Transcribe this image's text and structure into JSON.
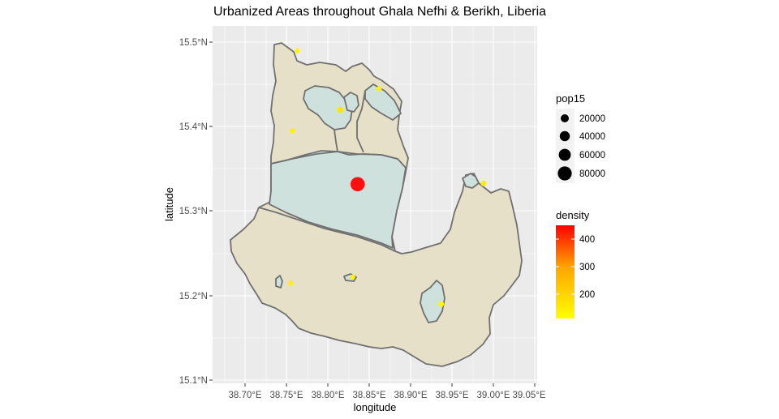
{
  "title": "Urbanized Areas throughout Ghala Nefhi & Berikh, Liberia",
  "axes": {
    "x_label": "longitude",
    "y_label": "latitude",
    "x_ticks": [
      "38.70°E",
      "38.75°E",
      "38.80°E",
      "38.85°E",
      "38.90°E",
      "38.95°E",
      "39.00°E",
      "39.05°E"
    ],
    "y_ticks": [
      "15.1°N",
      "15.2°N",
      "15.3°N",
      "15.4°N",
      "15.5°N"
    ]
  },
  "legend": {
    "size_title": "pop15",
    "size_labels": [
      "20000",
      "40000",
      "60000",
      "80000"
    ],
    "color_title": "density",
    "color_labels": [
      "400",
      "300",
      "200"
    ],
    "color_low": "#ffff00",
    "color_high": "#ff0000"
  },
  "colors": {
    "panel": "#ebebeb",
    "grid": "#ffffff",
    "region_fill": "#e6e0c8",
    "urban_fill": "#cfe1dc",
    "border": "#707070",
    "point_large": "#ff1010",
    "point_small": "#ffcc00"
  },
  "chart_data": {
    "type": "map",
    "xlim": [
      38.67,
      39.07
    ],
    "ylim": [
      15.09,
      15.52
    ],
    "points": [
      {
        "lon": 38.836,
        "lat": 15.332,
        "pop15": 80000,
        "density": 450
      },
      {
        "lon": 38.815,
        "lat": 15.42,
        "pop15": 5000,
        "density": 180
      },
      {
        "lon": 38.988,
        "lat": 15.333,
        "pop15": 3000,
        "density": 170
      },
      {
        "lon": 38.937,
        "lat": 15.19,
        "pop15": 3000,
        "density": 160
      },
      {
        "lon": 38.862,
        "lat": 15.445,
        "pop15": 2000,
        "density": 165
      },
      {
        "lon": 38.763,
        "lat": 15.49,
        "pop15": 1500,
        "density": 160
      },
      {
        "lon": 38.757,
        "lat": 15.395,
        "pop15": 1500,
        "density": 165
      },
      {
        "lon": 38.83,
        "lat": 15.222,
        "pop15": 1500,
        "density": 160
      },
      {
        "lon": 38.755,
        "lat": 15.215,
        "pop15": 1500,
        "density": 165
      }
    ]
  }
}
